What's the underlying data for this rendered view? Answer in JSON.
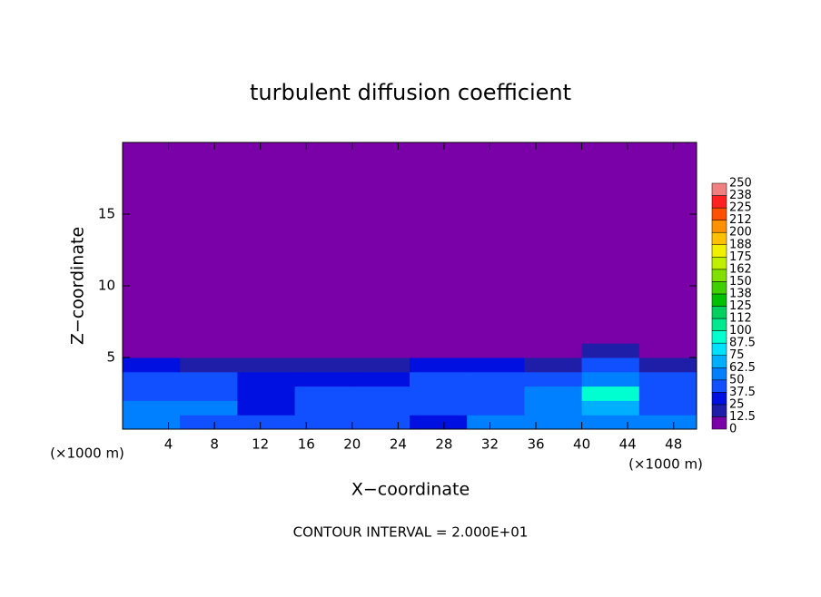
{
  "chart_data": {
    "type": "heatmap",
    "title": "turbulent diffusion coefficient",
    "xlabel": "X−coordinate",
    "ylabel": "Z−coordinate",
    "annotation": "CONTOUR INTERVAL = 2.000E+01",
    "x_unit_labels": [
      "(×1000 m)",
      "(×1000 m)"
    ],
    "xlim": [
      0,
      50
    ],
    "ylim": [
      0,
      20
    ],
    "xticks": [
      4,
      8,
      12,
      16,
      20,
      24,
      28,
      32,
      36,
      40,
      44,
      48
    ],
    "yticks": [
      5,
      10,
      15
    ],
    "x_edges": [
      0,
      5,
      10,
      15,
      20,
      25,
      30,
      35,
      40,
      45,
      50
    ],
    "y_edges": [
      0,
      1,
      2,
      3,
      4,
      5,
      6,
      20
    ],
    "values": [
      [
        55,
        45,
        40,
        45,
        40,
        35,
        50,
        60,
        55,
        50
      ],
      [
        50,
        50,
        35,
        45,
        40,
        40,
        45,
        55,
        70,
        45
      ],
      [
        45,
        40,
        35,
        40,
        40,
        45,
        45,
        55,
        90,
        45
      ],
      [
        45,
        40,
        30,
        35,
        35,
        45,
        40,
        45,
        60,
        40
      ],
      [
        25,
        20,
        15,
        20,
        20,
        25,
        25,
        15,
        40,
        20
      ],
      [
        10,
        0,
        0,
        0,
        5,
        0,
        10,
        0,
        20,
        0
      ],
      [
        0,
        0,
        0,
        0,
        0,
        0,
        0,
        0,
        0,
        0
      ]
    ],
    "colorbar": {
      "levels": [
        0,
        12.5,
        25,
        37.5,
        50,
        62.5,
        75,
        87.5,
        100,
        {
          "value": 112.5,
          "label": "112"
        },
        125,
        {
          "value": 137.5,
          "label": "138"
        },
        150,
        {
          "value": 162.5,
          "label": "162"
        },
        175,
        {
          "value": 187.5,
          "label": "188"
        },
        200,
        {
          "value": 212.5,
          "label": "212"
        },
        225,
        {
          "value": 237.5,
          "label": "238"
        },
        250
      ],
      "colors": [
        "#7a00a8",
        "#1e1ea8",
        "#0010e0",
        "#1050ff",
        "#0080ff",
        "#00b0ff",
        "#00e0ff",
        "#00ffd0",
        "#00e890",
        "#00d060",
        "#00c000",
        "#40d000",
        "#80e000",
        "#c0f000",
        "#f0f000",
        "#ffc000",
        "#ff9000",
        "#ff5000",
        "#ff2020",
        "#f08080"
      ]
    }
  }
}
